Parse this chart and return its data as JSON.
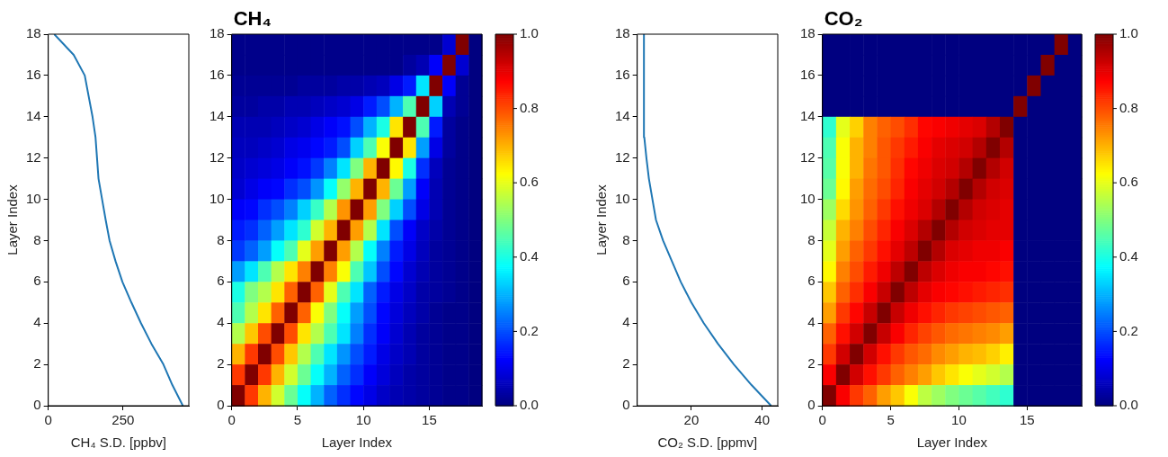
{
  "chart_data": [
    {
      "type": "line",
      "xlabel": "CH₄ S.D. [ppbv]",
      "ylabel": "Layer Index",
      "color": "#1f77b4",
      "marker": "none",
      "x": [
        450,
        415,
        385,
        345,
        310,
        278,
        248,
        225,
        205,
        192,
        180,
        168,
        163,
        158,
        148,
        135,
        122,
        85,
        20
      ],
      "values": [
        0,
        1,
        2,
        3,
        4,
        5,
        6,
        7,
        8,
        9,
        10,
        11,
        12,
        13,
        14,
        15,
        16,
        17,
        18
      ],
      "xlim": [
        0,
        470
      ],
      "xticks": [
        0,
        250
      ],
      "ylim": [
        0,
        18
      ],
      "yticks": [
        0,
        2,
        4,
        6,
        8,
        10,
        12,
        14,
        16,
        18
      ]
    },
    {
      "type": "heatmap",
      "title": "CH₄",
      "xlabel": "Layer Index",
      "cells": [
        [
          0.01,
          0.01,
          0.01,
          0.01,
          0.01,
          0.01,
          0.01,
          0.01,
          0.01,
          0.01,
          0.01,
          0.01,
          0.01,
          0.01,
          0.01,
          0.01,
          0.08,
          1,
          0
        ],
        [
          0.01,
          0.01,
          0.01,
          0.01,
          0.01,
          0.01,
          0.01,
          0.01,
          0.01,
          0.01,
          0.01,
          0.01,
          0.01,
          0.03,
          0.05,
          0.12,
          1,
          0.08,
          0
        ],
        [
          0.02,
          0.02,
          0.02,
          0.02,
          0.02,
          0.03,
          0.03,
          0.03,
          0.04,
          0.04,
          0.05,
          0.06,
          0.1,
          0.15,
          0.35,
          1,
          0.12,
          0.02,
          0
        ],
        [
          0.03,
          0.03,
          0.04,
          0.04,
          0.05,
          0.05,
          0.06,
          0.07,
          0.08,
          0.1,
          0.15,
          0.2,
          0.3,
          0.45,
          1,
          0.33,
          0.05,
          0.02,
          0
        ],
        [
          0.05,
          0.05,
          0.05,
          0.06,
          0.07,
          0.08,
          0.1,
          0.12,
          0.14,
          0.2,
          0.3,
          0.4,
          0.65,
          1,
          0.45,
          0.15,
          0.03,
          0.01,
          0
        ],
        [
          0.06,
          0.06,
          0.07,
          0.08,
          0.1,
          0.11,
          0.13,
          0.15,
          0.2,
          0.33,
          0.45,
          0.62,
          1,
          0.65,
          0.28,
          0.1,
          0.03,
          0.01,
          0
        ],
        [
          0.07,
          0.08,
          0.09,
          0.1,
          0.12,
          0.14,
          0.18,
          0.25,
          0.35,
          0.5,
          0.7,
          1,
          0.63,
          0.4,
          0.17,
          0.06,
          0.02,
          0.01,
          0
        ],
        [
          0.08,
          0.1,
          0.12,
          0.13,
          0.17,
          0.2,
          0.27,
          0.38,
          0.52,
          0.7,
          1,
          0.7,
          0.48,
          0.28,
          0.12,
          0.05,
          0.02,
          0.01,
          0
        ],
        [
          0.12,
          0.13,
          0.17,
          0.2,
          0.25,
          0.33,
          0.43,
          0.55,
          0.73,
          1,
          0.72,
          0.5,
          0.33,
          0.2,
          0.1,
          0.05,
          0.02,
          0.01,
          0
        ],
        [
          0.15,
          0.17,
          0.22,
          0.28,
          0.35,
          0.42,
          0.58,
          0.7,
          1,
          0.72,
          0.55,
          0.35,
          0.2,
          0.12,
          0.07,
          0.04,
          0.02,
          0.01,
          0
        ],
        [
          0.18,
          0.22,
          0.28,
          0.38,
          0.45,
          0.6,
          0.72,
          1,
          0.72,
          0.55,
          0.38,
          0.25,
          0.15,
          0.1,
          0.06,
          0.03,
          0.02,
          0.01,
          0
        ],
        [
          0.28,
          0.35,
          0.45,
          0.55,
          0.65,
          0.75,
          1,
          0.75,
          0.62,
          0.45,
          0.32,
          0.2,
          0.13,
          0.08,
          0.05,
          0.03,
          0.02,
          0.01,
          0
        ],
        [
          0.4,
          0.5,
          0.55,
          0.65,
          0.78,
          1,
          0.78,
          0.6,
          0.45,
          0.35,
          0.22,
          0.15,
          0.1,
          0.07,
          0.04,
          0.03,
          0.02,
          0.01,
          0
        ],
        [
          0.45,
          0.55,
          0.65,
          0.78,
          1,
          0.78,
          0.62,
          0.5,
          0.38,
          0.28,
          0.2,
          0.13,
          0.09,
          0.06,
          0.04,
          0.02,
          0.01,
          0.01,
          0
        ],
        [
          0.55,
          0.68,
          0.8,
          1,
          0.8,
          0.65,
          0.55,
          0.45,
          0.35,
          0.25,
          0.17,
          0.12,
          0.08,
          0.05,
          0.03,
          0.02,
          0.01,
          0.01,
          0
        ],
        [
          0.7,
          0.82,
          1,
          0.8,
          0.68,
          0.55,
          0.45,
          0.35,
          0.27,
          0.2,
          0.15,
          0.1,
          0.07,
          0.05,
          0.03,
          0.02,
          0.01,
          0.01,
          0
        ],
        [
          0.82,
          1,
          0.82,
          0.7,
          0.58,
          0.48,
          0.38,
          0.3,
          0.22,
          0.17,
          0.12,
          0.09,
          0.06,
          0.04,
          0.03,
          0.02,
          0.01,
          0.01,
          0
        ],
        [
          1,
          0.82,
          0.7,
          0.58,
          0.48,
          0.38,
          0.3,
          0.22,
          0.17,
          0.13,
          0.1,
          0.07,
          0.05,
          0.04,
          0.03,
          0.02,
          0.01,
          0.01,
          0
        ]
      ],
      "xlim": [
        0,
        19
      ],
      "xticks": [
        0,
        5,
        10,
        15
      ],
      "ylim": [
        0,
        18
      ],
      "yticks": [
        0,
        2,
        4,
        6,
        8,
        10,
        12,
        14,
        16,
        18
      ],
      "clim": [
        0,
        1
      ],
      "cticks": [
        {
          "value": 0,
          "label": "0.0"
        },
        {
          "value": 0.2,
          "label": "0.2"
        },
        {
          "value": 0.4,
          "label": "0.4"
        },
        {
          "value": 0.6,
          "label": "0.6"
        },
        {
          "value": 0.8,
          "label": "0.8"
        },
        {
          "value": 1,
          "label": "1.0"
        }
      ]
    },
    {
      "type": "line",
      "xlabel": "CO₂ S.D. [ppmv]",
      "ylabel": "Layer Index",
      "color": "#1f77b4",
      "marker": "none",
      "x": [
        42.5,
        37,
        32,
        27.5,
        23.5,
        20,
        17,
        14.5,
        12,
        10,
        9,
        8,
        7.3,
        6.7,
        6.6,
        6.6,
        6.6,
        6.6,
        6.6
      ],
      "values": [
        0,
        1,
        2,
        3,
        4,
        5,
        6,
        7,
        8,
        9,
        10,
        11,
        12,
        13,
        14,
        15,
        16,
        17,
        18
      ],
      "xlim": [
        4.7,
        44.4
      ],
      "xticks": [
        20,
        40
      ],
      "ylim": [
        0,
        18
      ],
      "yticks": [
        0,
        2,
        4,
        6,
        8,
        10,
        12,
        14,
        16,
        18
      ]
    },
    {
      "type": "heatmap",
      "title": "CO₂",
      "xlabel": "Layer Index",
      "cells": [
        [
          0,
          0,
          0,
          0,
          0,
          0,
          0,
          0,
          0,
          0,
          0,
          0,
          0,
          0,
          0,
          0,
          0,
          1,
          0
        ],
        [
          0,
          0,
          0,
          0,
          0,
          0,
          0,
          0,
          0,
          0,
          0,
          0,
          0,
          0,
          0,
          0,
          1,
          0,
          0
        ],
        [
          0,
          0,
          0,
          0,
          0,
          0,
          0,
          0,
          0,
          0,
          0,
          0,
          0,
          0,
          0,
          1,
          0,
          0,
          0
        ],
        [
          0,
          0,
          0,
          0,
          0,
          0,
          0,
          0,
          0,
          0,
          0,
          0,
          0,
          0,
          1,
          0,
          0,
          0,
          0
        ],
        [
          0.42,
          0.6,
          0.67,
          0.75,
          0.78,
          0.8,
          0.83,
          0.87,
          0.88,
          0.89,
          0.9,
          0.91,
          0.95,
          1,
          0,
          0,
          0,
          0,
          0
        ],
        [
          0.45,
          0.62,
          0.7,
          0.75,
          0.79,
          0.82,
          0.85,
          0.88,
          0.9,
          0.91,
          0.92,
          0.95,
          1,
          0.95,
          0,
          0,
          0,
          0,
          0
        ],
        [
          0.46,
          0.62,
          0.7,
          0.76,
          0.79,
          0.83,
          0.87,
          0.89,
          0.91,
          0.92,
          0.95,
          1,
          0.95,
          0.92,
          0,
          0,
          0,
          0,
          0
        ],
        [
          0.48,
          0.63,
          0.72,
          0.77,
          0.8,
          0.84,
          0.88,
          0.9,
          0.92,
          0.95,
          1,
          0.95,
          0.92,
          0.91,
          0,
          0,
          0,
          0,
          0
        ],
        [
          0.53,
          0.66,
          0.73,
          0.78,
          0.82,
          0.86,
          0.89,
          0.91,
          0.95,
          1,
          0.95,
          0.92,
          0.91,
          0.9,
          0,
          0,
          0,
          0,
          0
        ],
        [
          0.57,
          0.7,
          0.75,
          0.8,
          0.84,
          0.88,
          0.91,
          0.95,
          1,
          0.95,
          0.92,
          0.91,
          0.9,
          0.9,
          0,
          0,
          0,
          0,
          0
        ],
        [
          0.6,
          0.72,
          0.78,
          0.82,
          0.86,
          0.9,
          0.94,
          1,
          0.95,
          0.91,
          0.9,
          0.89,
          0.89,
          0.88,
          0,
          0,
          0,
          0,
          0
        ],
        [
          0.63,
          0.75,
          0.8,
          0.85,
          0.89,
          0.94,
          1,
          0.94,
          0.91,
          0.89,
          0.88,
          0.88,
          0.87,
          0.86,
          0,
          0,
          0,
          0,
          0
        ],
        [
          0.68,
          0.78,
          0.83,
          0.88,
          0.93,
          1,
          0.94,
          0.9,
          0.88,
          0.87,
          0.86,
          0.85,
          0.84,
          0.83,
          0,
          0,
          0,
          0,
          0
        ],
        [
          0.72,
          0.82,
          0.87,
          0.93,
          1,
          0.93,
          0.89,
          0.86,
          0.84,
          0.82,
          0.81,
          0.8,
          0.79,
          0.78,
          0,
          0,
          0,
          0,
          0
        ],
        [
          0.78,
          0.86,
          0.92,
          1,
          0.93,
          0.88,
          0.84,
          0.81,
          0.79,
          0.77,
          0.76,
          0.75,
          0.74,
          0.72,
          0,
          0,
          0,
          0,
          0
        ],
        [
          0.82,
          0.92,
          1,
          0.92,
          0.86,
          0.82,
          0.79,
          0.77,
          0.74,
          0.72,
          0.7,
          0.69,
          0.67,
          0.64,
          0,
          0,
          0,
          0,
          0
        ],
        [
          0.88,
          1,
          0.92,
          0.86,
          0.82,
          0.78,
          0.75,
          0.72,
          0.68,
          0.65,
          0.62,
          0.6,
          0.58,
          0.55,
          0,
          0,
          0,
          0,
          0
        ],
        [
          1,
          0.88,
          0.82,
          0.78,
          0.72,
          0.68,
          0.62,
          0.56,
          0.53,
          0.5,
          0.48,
          0.46,
          0.44,
          0.42,
          0,
          0,
          0,
          0,
          0
        ]
      ],
      "xlim": [
        0,
        19
      ],
      "xticks": [
        0,
        5,
        10,
        15
      ],
      "ylim": [
        0,
        18
      ],
      "yticks": [
        0,
        2,
        4,
        6,
        8,
        10,
        12,
        14,
        16,
        18
      ],
      "clim": [
        0,
        1
      ],
      "cticks": [
        {
          "value": 0,
          "label": "0.0"
        },
        {
          "value": 0.2,
          "label": "0.2"
        },
        {
          "value": 0.4,
          "label": "0.4"
        },
        {
          "value": 0.6,
          "label": "0.6"
        },
        {
          "value": 0.8,
          "label": "0.8"
        },
        {
          "value": 1,
          "label": "1.0"
        }
      ]
    }
  ]
}
